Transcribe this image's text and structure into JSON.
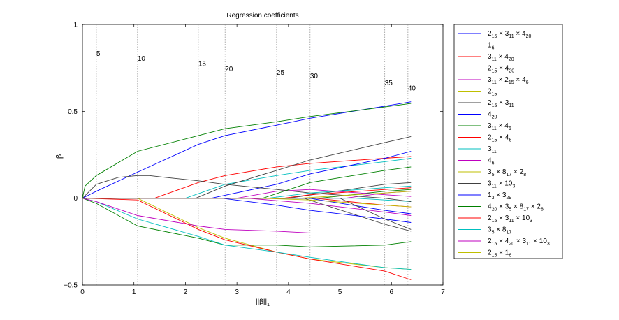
{
  "chart_data": {
    "type": "line",
    "title": "Regression coefficients",
    "xlabel": "||β||",
    "xlabel_subscript": "1",
    "ylabel": "β",
    "xlim": [
      0,
      7
    ],
    "ylim": [
      -0.5,
      1
    ],
    "xticks": [
      "0",
      "1",
      "2",
      "3",
      "4",
      "5",
      "6",
      "7"
    ],
    "yticks": [
      "1",
      "0.5",
      "0",
      "−0.5"
    ],
    "ytick_values": [
      1,
      0.5,
      0,
      -0.5
    ],
    "grid": false,
    "legend_position": "outside-right",
    "step_markers": [
      {
        "x": 0.27,
        "label": "5",
        "label_y": 0.82
      },
      {
        "x": 1.07,
        "label": "10",
        "label_y": 0.79
      },
      {
        "x": 2.25,
        "label": "15",
        "label_y": 0.76
      },
      {
        "x": 2.77,
        "label": "20",
        "label_y": 0.73
      },
      {
        "x": 3.77,
        "label": "25",
        "label_y": 0.71
      },
      {
        "x": 4.42,
        "label": "30",
        "label_y": 0.69
      },
      {
        "x": 5.87,
        "label": "35",
        "label_y": 0.65
      },
      {
        "x": 6.32,
        "label": "40",
        "label_y": 0.62
      }
    ],
    "series": [
      {
        "name": "2_{15} × 3_{11} × 4_{20}",
        "color": "#0000ff",
        "x": [
          0,
          0.27,
          1.07,
          2.25,
          2.77,
          3.77,
          4.42,
          5.87,
          6.38
        ],
        "y": [
          0,
          0.04,
          0.15,
          0.31,
          0.36,
          0.42,
          0.46,
          0.53,
          0.555
        ]
      },
      {
        "name": "1_6",
        "color": "#008000",
        "x": [
          0,
          0.05,
          0.27,
          1.07,
          2.25,
          2.77,
          3.77,
          4.42,
          5.87,
          6.38
        ],
        "y": [
          0,
          0.07,
          0.13,
          0.27,
          0.36,
          0.4,
          0.44,
          0.47,
          0.525,
          0.545
        ]
      },
      {
        "name": "3_{11} × 4_{20}",
        "color": "#ff0000",
        "x": [
          0,
          1.4,
          2.25,
          2.77,
          3.77,
          4.42,
          5.87,
          6.38
        ],
        "y": [
          0,
          0,
          0.09,
          0.13,
          0.18,
          0.2,
          0.23,
          0.24
        ]
      },
      {
        "name": "2_{15} × 4_{20}",
        "color": "#00bfbf",
        "x": [
          0,
          2.0,
          2.77,
          3.77,
          4.42,
          5.87,
          6.38
        ],
        "y": [
          0,
          0,
          0.08,
          0.13,
          0.16,
          0.21,
          0.23
        ]
      },
      {
        "name": "3_{11} × 2_{15} × 4_6",
        "color": "#bf00bf",
        "x": [
          0,
          3.0,
          3.77,
          4.42,
          5.87,
          6.38
        ],
        "y": [
          0,
          0,
          0.04,
          0.05,
          0.02,
          0.01
        ]
      },
      {
        "name": "2_{15}",
        "color": "#bfbf00",
        "x": [
          0,
          1.07,
          2.25,
          2.77,
          3.77,
          4.42,
          5.87,
          6.38
        ],
        "y": [
          0,
          0,
          -0.17,
          -0.23,
          -0.31,
          -0.35,
          -0.4,
          -0.41
        ]
      },
      {
        "name": "2_{15} × 3_{11}",
        "color": "#404040",
        "x": [
          0,
          2.2,
          2.77,
          3.77,
          4.42,
          5.87,
          6.38
        ],
        "y": [
          0,
          0,
          0.07,
          0.16,
          0.22,
          0.32,
          0.355
        ]
      },
      {
        "name": "4_{20}",
        "color": "#0000ff",
        "x": [
          0,
          2.5,
          3.77,
          4.42,
          5.87,
          6.38
        ],
        "y": [
          0,
          0,
          0.08,
          0.14,
          0.23,
          0.27
        ]
      },
      {
        "name": "3_{11} × 4_6",
        "color": "#008000",
        "x": [
          0,
          0.27,
          1.07,
          2.25,
          2.77,
          3.77,
          4.42,
          5.87,
          6.38
        ],
        "y": [
          0,
          -0.03,
          -0.16,
          -0.23,
          -0.27,
          -0.27,
          -0.28,
          -0.27,
          -0.25
        ]
      },
      {
        "name": "2_{15} × 4_6",
        "color": "#ff0000",
        "x": [
          0,
          1.07,
          2.25,
          2.77,
          3.77,
          4.42,
          5.87,
          6.38
        ],
        "y": [
          0,
          -0.01,
          -0.18,
          -0.24,
          -0.31,
          -0.35,
          -0.42,
          -0.47
        ]
      },
      {
        "name": "3_{11}",
        "color": "#00bfbf",
        "x": [
          0,
          0.27,
          1.07,
          2.25,
          2.77,
          3.77,
          4.42,
          5.87,
          6.38
        ],
        "y": [
          0,
          -0.02,
          -0.12,
          -0.22,
          -0.27,
          -0.31,
          -0.34,
          -0.4,
          -0.41
        ]
      },
      {
        "name": "4_6",
        "color": "#bf00bf",
        "x": [
          0,
          0.27,
          1.07,
          2.25,
          2.77,
          3.77,
          4.42,
          5.87,
          6.38
        ],
        "y": [
          0,
          -0.02,
          -0.1,
          -0.16,
          -0.18,
          -0.19,
          -0.2,
          -0.2,
          -0.2
        ]
      },
      {
        "name": "3_5 × 8_{17} × 2_8",
        "color": "#bfbf00",
        "x": [
          0,
          3.4,
          4.42,
          5.87,
          6.38
        ],
        "y": [
          0,
          0,
          -0.01,
          -0.04,
          -0.05
        ]
      },
      {
        "name": "3_{11} × 10_3",
        "color": "#404040",
        "x": [
          0,
          0.27,
          0.7,
          1.07,
          1.3,
          1.6,
          2.25,
          2.77,
          3.77,
          4.42,
          5.87,
          6.38
        ],
        "y": [
          0,
          0.08,
          0.12,
          0.13,
          0.13,
          0.12,
          0.1,
          0.08,
          0.05,
          0.03,
          0.0,
          -0.02
        ]
      },
      {
        "name": "1_3 × 3_{29}",
        "color": "#0000ff",
        "x": [
          0,
          2.7,
          3.77,
          4.42,
          5.87,
          6.38
        ],
        "y": [
          0,
          0,
          -0.04,
          -0.07,
          -0.12,
          -0.14
        ]
      },
      {
        "name": "4_{20} × 3_5 × 8_{17} × 2_8",
        "color": "#008000",
        "x": [
          0,
          3.5,
          4.42,
          5.87,
          6.38
        ],
        "y": [
          0,
          0,
          0.09,
          0.16,
          0.18
        ]
      },
      {
        "name": "2_{15} × 3_{11} × 10_3",
        "color": "#ff0000",
        "x": [
          0,
          3.9,
          4.42,
          5.87,
          6.38
        ],
        "y": [
          0,
          0,
          0.02,
          0.05,
          0.06
        ]
      },
      {
        "name": "3_5 × 8_{17}",
        "color": "#00bfbf",
        "x": [
          0,
          3.6,
          4.42,
          5.87,
          6.38
        ],
        "y": [
          0,
          0,
          0.03,
          0.06,
          0.07
        ]
      },
      {
        "name": "2_{15} × 4_{20} × 3_{11} × 10_3",
        "color": "#bf00bf",
        "x": [
          0,
          3.2,
          4.42,
          5.87,
          6.38
        ],
        "y": [
          0,
          0,
          -0.03,
          -0.08,
          -0.1
        ]
      },
      {
        "name": "2_{15} × 1_6",
        "color": "#bfbf00",
        "x": [
          0,
          4.2,
          5.87,
          6.38
        ],
        "y": [
          0,
          0,
          0.03,
          0.04
        ]
      }
    ],
    "extra_unlabeled_series": [
      {
        "color": "#404040",
        "x": [
          0,
          4.0,
          5.87,
          6.38
        ],
        "y": [
          0,
          0,
          0.08,
          0.09
        ]
      },
      {
        "color": "#404040",
        "x": [
          0,
          4.3,
          5.87,
          6.38
        ],
        "y": [
          0,
          0,
          -0.15,
          -0.19
        ]
      },
      {
        "color": "#0000ff",
        "x": [
          0,
          4.4,
          5.87,
          6.38
        ],
        "y": [
          0,
          0,
          -0.07,
          -0.09
        ]
      },
      {
        "color": "#ff0000",
        "x": [
          0,
          4.5,
          5.87,
          6.38
        ],
        "y": [
          0,
          0,
          -0.04,
          -0.05
        ]
      },
      {
        "color": "#008000",
        "x": [
          0,
          4.6,
          5.87,
          6.38
        ],
        "y": [
          0,
          0,
          0.04,
          0.05
        ]
      },
      {
        "color": "#404040",
        "x": [
          0,
          5.0,
          5.87,
          6.38
        ],
        "y": [
          0,
          0,
          -0.12,
          -0.18
        ]
      },
      {
        "color": "#bf00bf",
        "x": [
          0,
          5.1,
          5.87,
          6.38
        ],
        "y": [
          0,
          0,
          0.03,
          0.04
        ]
      },
      {
        "color": "#00bfbf",
        "x": [
          0,
          5.3,
          5.87,
          6.38
        ],
        "y": [
          0,
          0,
          -0.01,
          -0.02
        ]
      }
    ]
  }
}
